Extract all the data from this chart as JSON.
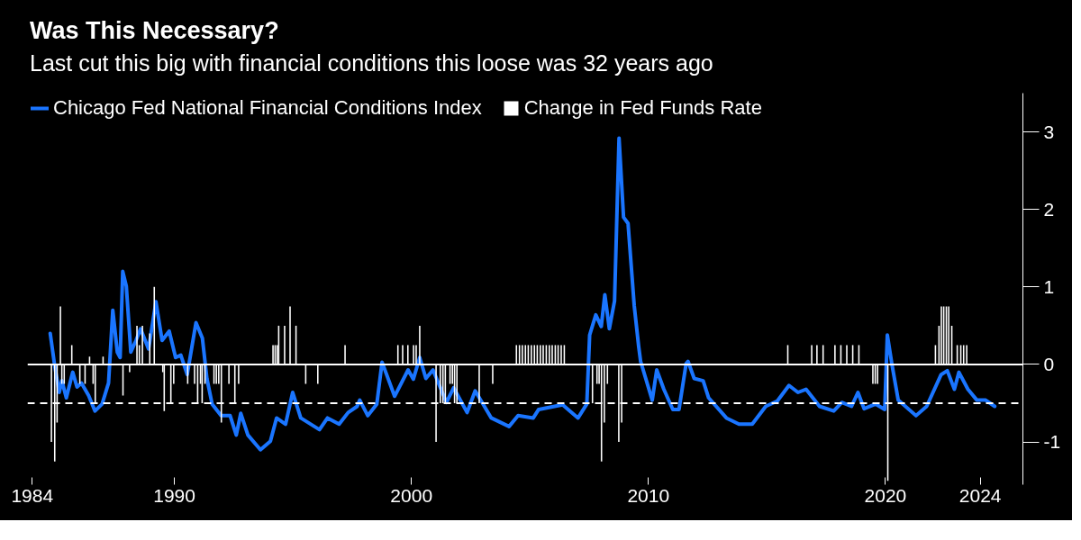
{
  "chart_data": {
    "type": "line",
    "title": "Was This Necessary?",
    "subtitle": "Last cut this big with financial conditions this loose was 32 years ago",
    "series": [
      {
        "name": "Change in Fed Funds Rate",
        "type": "bar",
        "color": "#ffffff",
        "x": [
          1984.81,
          1984.95,
          1985.05,
          1985.19,
          1985.25,
          1985.35,
          1985.67,
          1986.01,
          1986.23,
          1986.42,
          1986.57,
          1986.66,
          1986.99,
          1987.83,
          1988.11,
          1988.42,
          1988.52,
          1988.65,
          1988.96,
          1989.15,
          1989.51,
          1989.57,
          1989.85,
          1989.97,
          1990.56,
          1990.85,
          1990.98,
          1991.1,
          1991.17,
          1991.29,
          1991.67,
          1991.77,
          1991.87,
          1991.98,
          1992.3,
          1992.55,
          1992.71,
          1994.16,
          1994.25,
          1994.34,
          1994.4,
          1994.65,
          1994.88,
          1995.13,
          1995.54,
          1996.05,
          1997.2,
          1999.43,
          1999.63,
          1999.85,
          2000.09,
          2000.2,
          2000.35,
          2001.04,
          2001.22,
          2001.33,
          2001.43,
          2001.63,
          2001.73,
          2001.82,
          2001.92,
          2002.86,
          2003.43,
          2004.43,
          2004.56,
          2004.68,
          2004.81,
          2004.93,
          2005.06,
          2005.19,
          2005.31,
          2005.44,
          2005.56,
          2005.69,
          2005.82,
          2005.94,
          2006.07,
          2006.19,
          2006.32,
          2006.45,
          2007.64,
          2007.83,
          2007.92,
          2008.02,
          2008.14,
          2008.27,
          2008.75,
          2008.87,
          2015.88,
          2016.89,
          2017.11,
          2017.37,
          2017.87,
          2018.12,
          2018.37,
          2018.62,
          2018.88,
          2019.47,
          2019.57,
          2019.67,
          2020.1,
          2022.11,
          2022.26,
          2022.36,
          2022.46,
          2022.57,
          2022.67,
          2022.8,
          2023.03,
          2023.18,
          2023.3,
          2023.43
        ],
        "values": [
          -1.0,
          -1.25,
          -0.75,
          0.75,
          -0.25,
          -0.25,
          0.25,
          -0.25,
          -0.25,
          0.1,
          -0.25,
          -0.5,
          0.1,
          -0.4,
          -0.1,
          0.5,
          0.25,
          0.5,
          0.4,
          1.0,
          -0.1,
          -0.6,
          -0.5,
          -0.25,
          -0.25,
          -0.25,
          -0.5,
          -0.25,
          -0.5,
          -0.25,
          -0.25,
          -0.25,
          -0.25,
          -0.75,
          -0.25,
          -0.5,
          -0.25,
          0.25,
          0.25,
          0.25,
          0.5,
          0.5,
          0.75,
          0.5,
          -0.25,
          -0.25,
          0.25,
          0.25,
          0.25,
          0.25,
          0.25,
          0.25,
          0.5,
          -1.0,
          -0.5,
          -0.5,
          -0.5,
          -0.25,
          -0.25,
          -0.5,
          -0.5,
          -0.5,
          -0.25,
          0.25,
          0.25,
          0.25,
          0.25,
          0.25,
          0.25,
          0.25,
          0.25,
          0.25,
          0.25,
          0.25,
          0.25,
          0.25,
          0.25,
          0.25,
          0.25,
          0.25,
          -0.5,
          -0.25,
          -0.25,
          -1.25,
          -0.75,
          -0.25,
          -1.0,
          -0.75,
          0.25,
          0.25,
          0.25,
          0.25,
          0.25,
          0.25,
          0.25,
          0.25,
          0.25,
          -0.25,
          -0.25,
          -0.25,
          -1.5,
          0.25,
          0.5,
          0.75,
          0.75,
          0.75,
          0.75,
          0.5,
          0.25,
          0.25,
          0.25,
          0.25
        ]
      },
      {
        "name": "Chicago Fed National Financial Conditions Index",
        "color": "#1a75ff",
        "x": [
          1984.76,
          1984.95,
          1985.14,
          1985.25,
          1985.44,
          1985.71,
          1985.89,
          1986.08,
          1986.38,
          1986.65,
          1986.95,
          1987.22,
          1987.4,
          1987.59,
          1987.71,
          1987.82,
          1987.97,
          1988.16,
          1988.38,
          1988.57,
          1988.91,
          1989.22,
          1989.48,
          1989.78,
          1990.05,
          1990.27,
          1990.54,
          1990.91,
          1991.18,
          1991.37,
          1991.59,
          1991.97,
          1992.35,
          1992.61,
          1992.8,
          1993.1,
          1993.63,
          1994.05,
          1994.31,
          1994.69,
          1994.99,
          1995.33,
          1996.12,
          1996.46,
          1996.95,
          1997.33,
          1997.71,
          1997.82,
          1998.16,
          1998.54,
          1998.76,
          1999.29,
          1999.86,
          2000.08,
          2000.35,
          2000.61,
          2000.91,
          2001.48,
          2001.78,
          2002.35,
          2002.69,
          2003.37,
          2004.12,
          2004.5,
          2005.14,
          2005.37,
          2006.38,
          2007.03,
          2007.4,
          2007.52,
          2007.78,
          2008.01,
          2008.16,
          2008.35,
          2008.57,
          2008.76,
          2008.95,
          2009.14,
          2009.4,
          2009.59,
          2009.67,
          2010.16,
          2010.35,
          2010.65,
          2011.03,
          2011.29,
          2011.59,
          2011.67,
          2011.93,
          2012.31,
          2012.54,
          2013.29,
          2013.82,
          2014.38,
          2014.95,
          2015.44,
          2015.93,
          2016.31,
          2016.65,
          2017.22,
          2017.82,
          2018.16,
          2018.57,
          2018.84,
          2019.1,
          2019.59,
          2019.97,
          2020.08,
          2020.27,
          2020.54,
          2021.29,
          2021.74,
          2022.35,
          2022.61,
          2022.91,
          2023.1,
          2023.48,
          2023.86,
          2024.23,
          2024.61
        ],
        "values": [
          0.4,
          -0.02,
          -0.36,
          -0.21,
          -0.43,
          -0.1,
          -0.29,
          -0.24,
          -0.4,
          -0.6,
          -0.51,
          -0.24,
          0.7,
          0.16,
          0.09,
          1.2,
          1.01,
          0.16,
          0.31,
          0.46,
          0.2,
          0.81,
          0.31,
          0.43,
          0.09,
          0.12,
          -0.13,
          0.54,
          0.34,
          -0.18,
          -0.51,
          -0.66,
          -0.66,
          -0.91,
          -0.63,
          -0.91,
          -1.1,
          -0.99,
          -0.69,
          -0.77,
          -0.36,
          -0.69,
          -0.84,
          -0.69,
          -0.77,
          -0.62,
          -0.54,
          -0.46,
          -0.66,
          -0.51,
          0.03,
          -0.41,
          -0.07,
          -0.19,
          0.09,
          -0.18,
          -0.07,
          -0.49,
          -0.3,
          -0.62,
          -0.34,
          -0.69,
          -0.8,
          -0.66,
          -0.69,
          -0.58,
          -0.52,
          -0.69,
          -0.51,
          0.38,
          0.64,
          0.49,
          0.9,
          0.46,
          0.82,
          2.92,
          1.9,
          1.82,
          0.76,
          0.23,
          0.04,
          -0.46,
          -0.07,
          -0.32,
          -0.58,
          -0.58,
          0.01,
          0.04,
          -0.18,
          -0.21,
          -0.43,
          -0.69,
          -0.77,
          -0.77,
          -0.54,
          -0.47,
          -0.27,
          -0.36,
          -0.32,
          -0.54,
          -0.6,
          -0.49,
          -0.54,
          -0.36,
          -0.57,
          -0.51,
          -0.58,
          0.38,
          0.01,
          -0.46,
          -0.66,
          -0.54,
          -0.13,
          -0.08,
          -0.32,
          -0.1,
          -0.32,
          -0.46,
          -0.46,
          -0.54
        ]
      }
    ],
    "xlim": [
      1983.8,
      2025.8
    ],
    "ylim": [
      -1.55,
      3.5
    ],
    "xticks": [
      1984,
      1990,
      2000,
      2010,
      2020,
      2024
    ],
    "yticks": [
      -1,
      0,
      1,
      2,
      3
    ],
    "ref_lines": [
      {
        "axis": "y",
        "value": 0,
        "color": "#ffffff",
        "line_style": "solid"
      },
      {
        "axis": "y",
        "value": -0.5,
        "color": "#ffffff",
        "line_style": "dashed"
      }
    ],
    "legend": "top left"
  }
}
